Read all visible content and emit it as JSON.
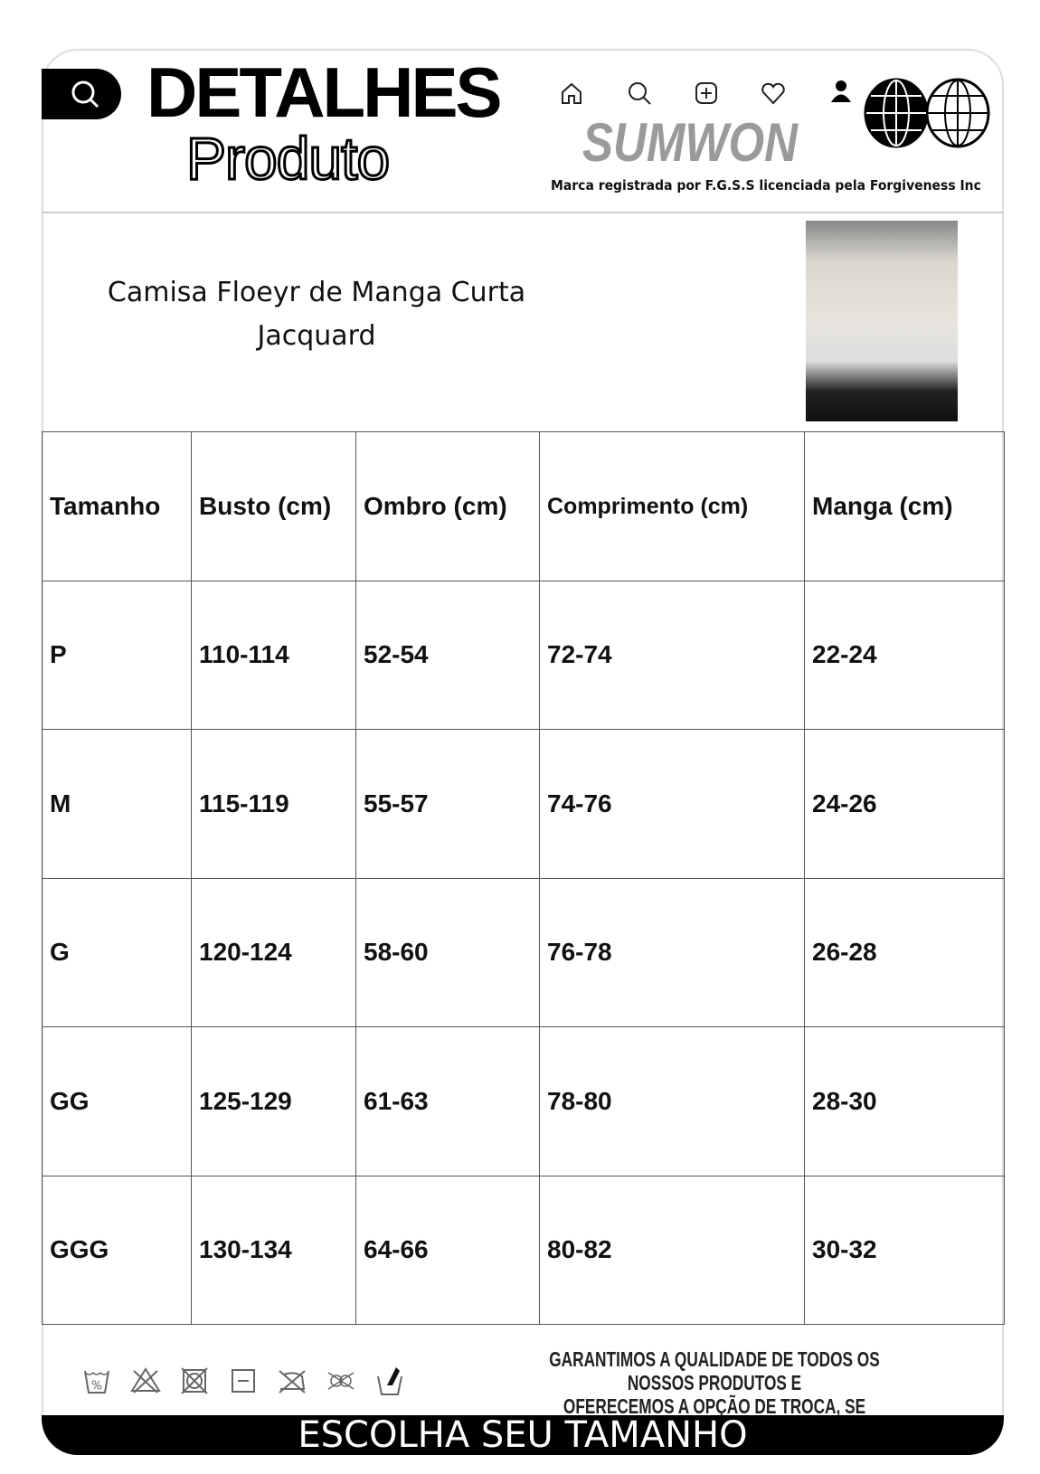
{
  "header": {
    "title_line1": "DETALHES",
    "title_line2": "Produto",
    "brand": "SUMWON",
    "tagline": "Marca registrada por F.G.S.S licenciada pela Forgiveness Inc",
    "nav_icons": [
      "home-icon",
      "search-icon",
      "add-icon",
      "heart-icon",
      "user-icon"
    ]
  },
  "product": {
    "name_line1": "Camisa Floeyr de Manga Curta",
    "name_line2": "Jacquard"
  },
  "size_table": {
    "headers": [
      "Tamanho",
      "Busto (cm)",
      "Ombro (cm)",
      "Comprimento (cm)",
      "Manga (cm)"
    ],
    "rows": [
      [
        "P",
        "110-114",
        "52-54",
        "72-74",
        "22-24"
      ],
      [
        "M",
        "115-119",
        "55-57",
        "74-76",
        "24-26"
      ],
      [
        "G",
        "120-124",
        "58-60",
        "76-78",
        "26-28"
      ],
      [
        "GG",
        "125-129",
        "61-63",
        "78-80",
        "28-30"
      ],
      [
        "GGG",
        "130-134",
        "64-66",
        "80-82",
        "30-32"
      ]
    ]
  },
  "footer": {
    "guarantee_line1": "GARANTIMOS A QUALIDADE DE TODOS OS NOSSOS PRODUTOS E",
    "guarantee_line2": "OFERECEMOS A OPÇÃO DE TROCA, SE NECESSÁRIO.",
    "banner": "ESCOLHA SEU TAMANHO",
    "care_icons": [
      "wash-30-icon",
      "no-bleach-icon",
      "no-tumble-dry-icon",
      "dry-flat-icon",
      "iron-icon",
      "no-dry-clean-icon",
      "hand-wash-icon"
    ]
  }
}
